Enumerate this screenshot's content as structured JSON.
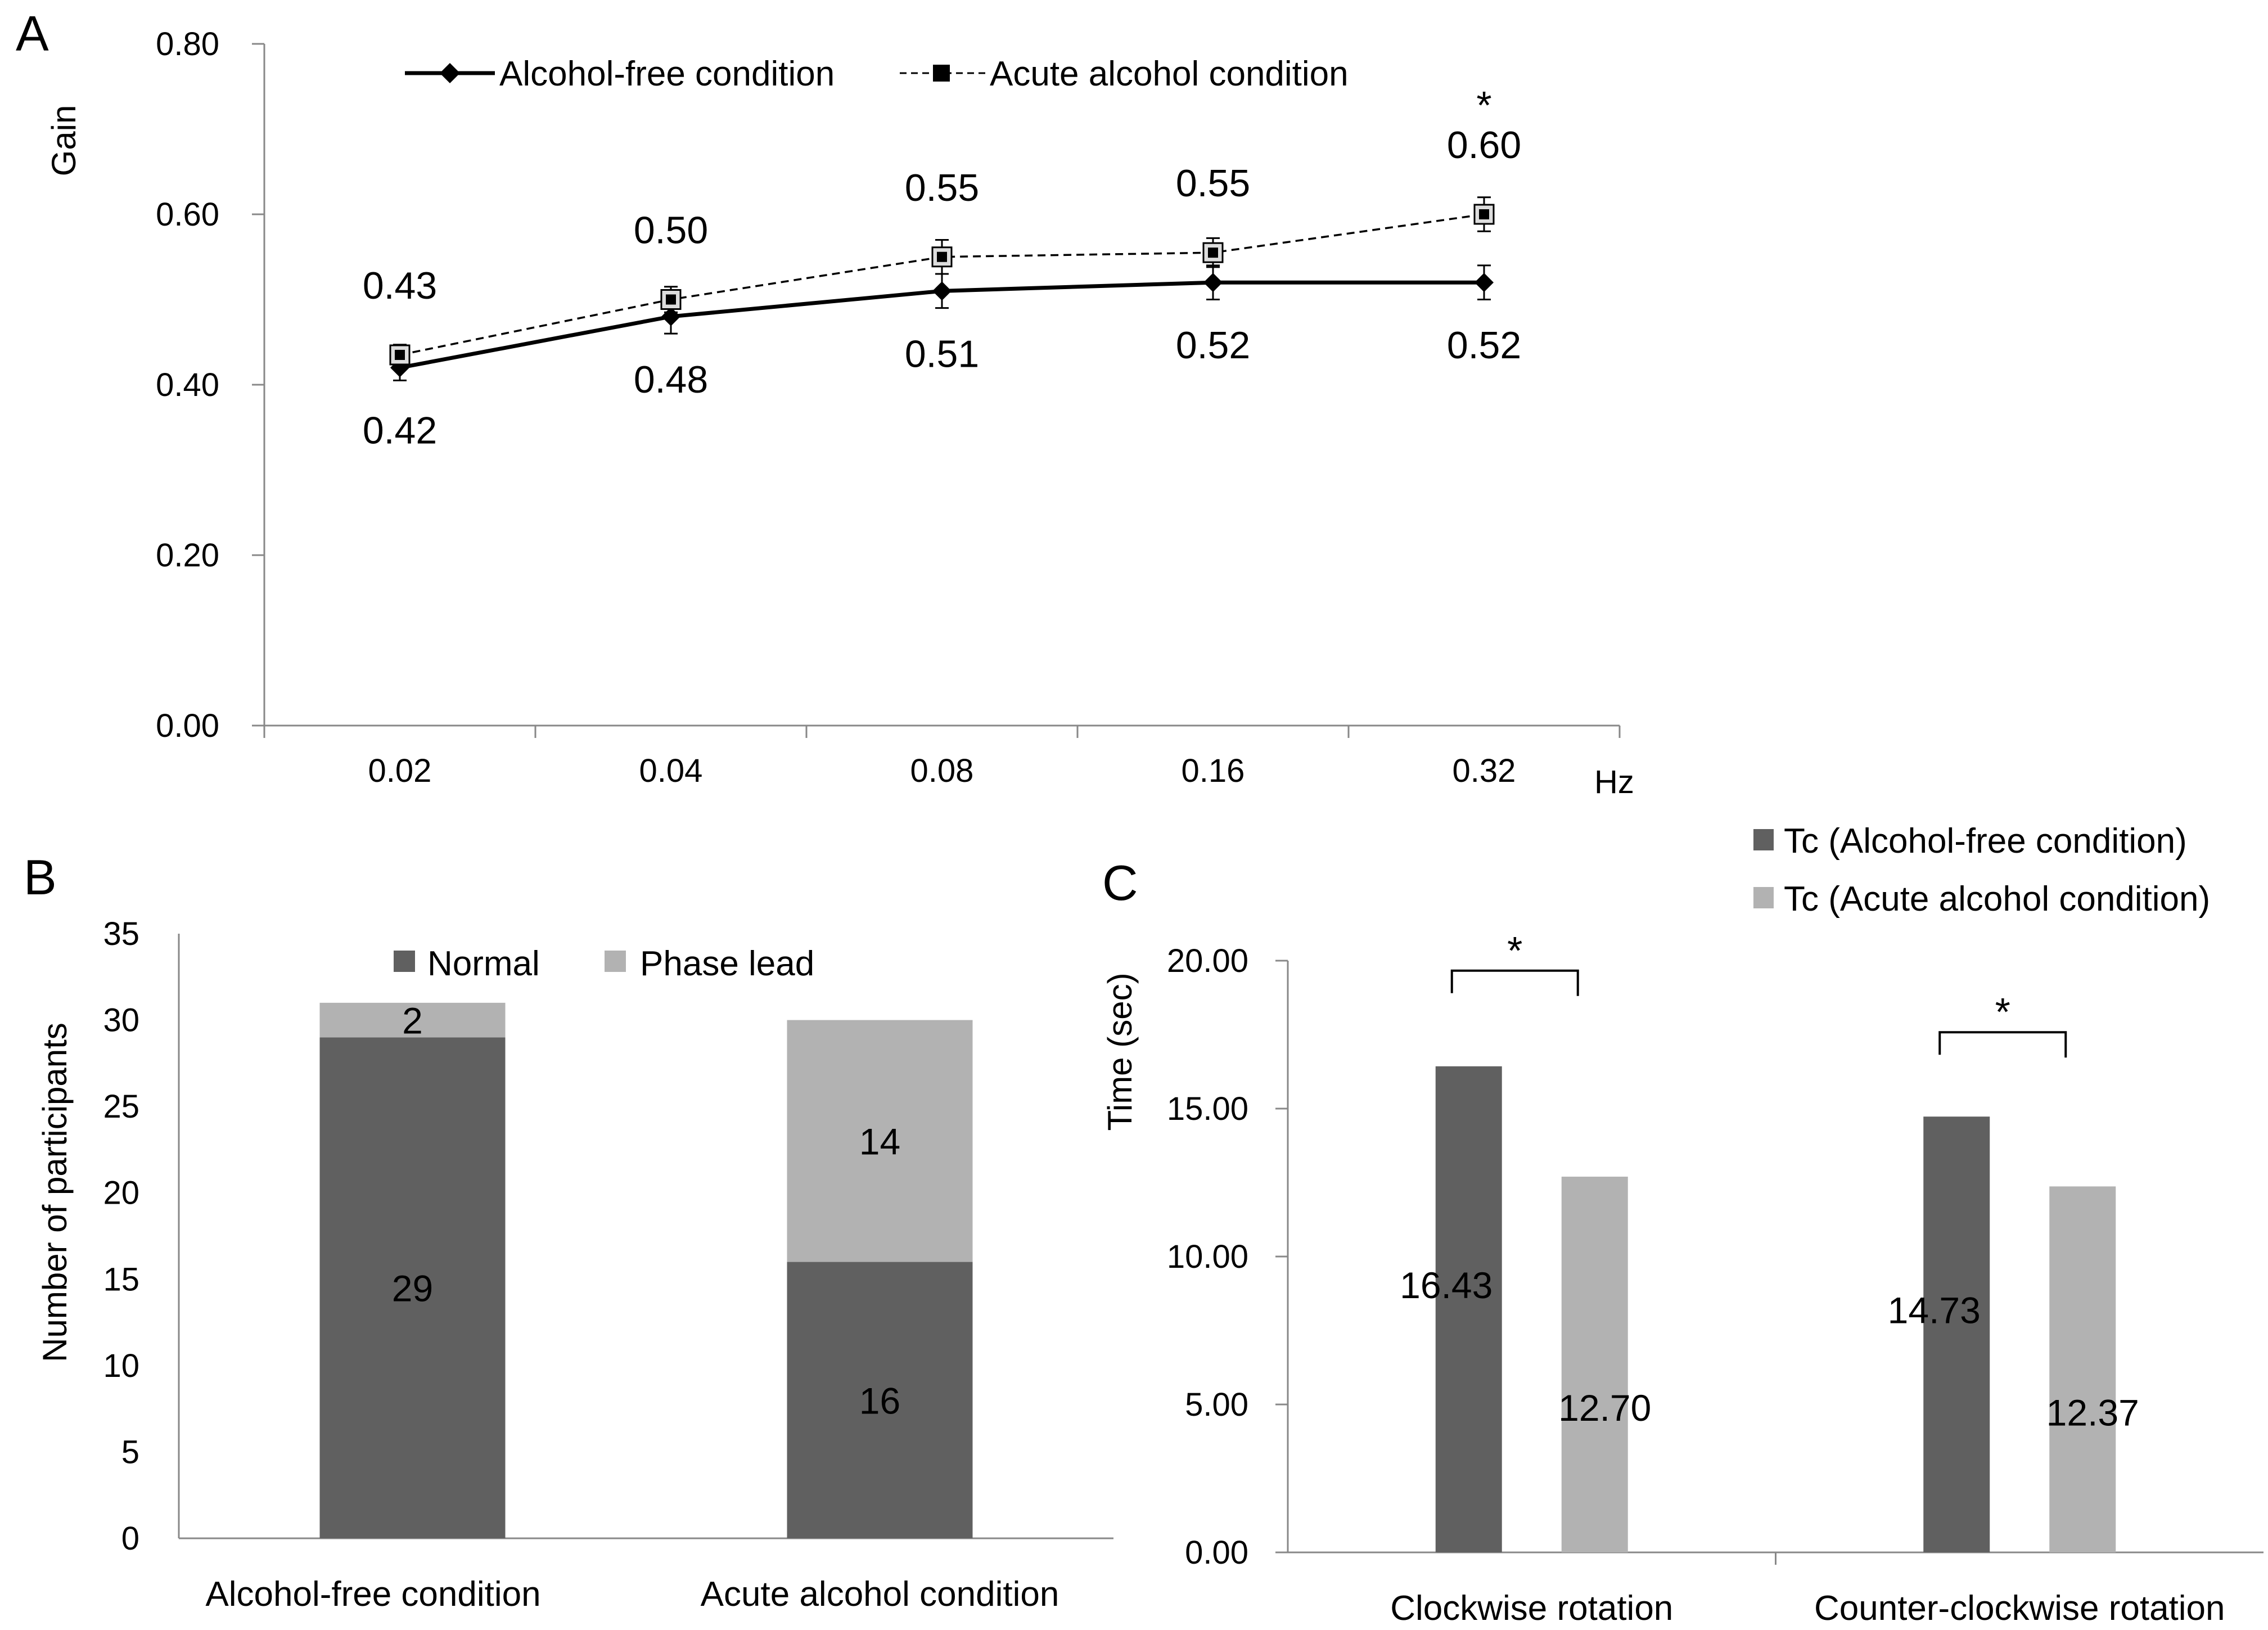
{
  "colors": {
    "dark": "#606060",
    "light": "#b2b2b2",
    "axis": "#888888",
    "line": "#000000"
  },
  "chart_data": [
    {
      "panel": "A",
      "type": "line",
      "ylabel": "Gain",
      "xunit": "Hz",
      "categories": [
        "0.02",
        "0.04",
        "0.08",
        "0.16",
        "0.32"
      ],
      "ylim": [
        0,
        0.8
      ],
      "yticks": [
        "0.00",
        "0.20",
        "0.40",
        "0.60",
        "0.80"
      ],
      "grid": false,
      "legend_position": "top",
      "series": [
        {
          "name": "Alcohol-free condition",
          "style": "solid-diamond",
          "values": [
            0.42,
            0.48,
            0.51,
            0.52,
            0.52
          ],
          "errors": [
            0.015,
            0.02,
            0.02,
            0.02,
            0.02
          ],
          "labels": [
            "0.42",
            "0.48",
            "0.51",
            "0.52",
            "0.52"
          ]
        },
        {
          "name": "Acute alcohol condition",
          "style": "dashed-square",
          "values": [
            0.435,
            0.5,
            0.55,
            0.555,
            0.6
          ],
          "errors": [
            0.012,
            0.015,
            0.02,
            0.017,
            0.02
          ],
          "labels": [
            "0.43",
            "0.50",
            "0.55",
            "0.55",
            "0.60"
          ]
        }
      ],
      "annotations": [
        {
          "category": "0.32",
          "text": "*"
        }
      ]
    },
    {
      "panel": "B",
      "type": "bar",
      "stacked": true,
      "ylabel": "Number of participants",
      "categories": [
        "Alcohol-free condition",
        "Acute alcohol condition"
      ],
      "ylim": [
        0,
        35
      ],
      "yticks": [
        "0",
        "5",
        "10",
        "15",
        "20",
        "25",
        "30",
        "35"
      ],
      "legend_position": "top",
      "series": [
        {
          "name": "Normal",
          "values": [
            29,
            16
          ],
          "labels": [
            "29",
            "16"
          ]
        },
        {
          "name": "Phase lead",
          "values": [
            2,
            14
          ],
          "labels": [
            "2",
            "14"
          ]
        }
      ]
    },
    {
      "panel": "C",
      "type": "bar",
      "stacked": false,
      "ylabel": "Time (sec)",
      "categories": [
        "Clockwise rotation",
        "Counter-clockwise rotation"
      ],
      "ylim": [
        0,
        20
      ],
      "yticks": [
        "0.00",
        "5.00",
        "10.00",
        "15.00",
        "20.00"
      ],
      "legend_position": "top-right",
      "series": [
        {
          "name": "Tc (Alcohol-free condition)",
          "values": [
            16.43,
            14.73
          ],
          "labels": [
            "16.43",
            "14.73"
          ]
        },
        {
          "name": "Tc (Acute alcohol condition)",
          "values": [
            12.7,
            12.37
          ],
          "labels": [
            "12.70",
            "12.37"
          ]
        }
      ],
      "annotations": [
        {
          "category": "Clockwise rotation",
          "text": "*"
        },
        {
          "category": "Counter-clockwise rotation",
          "text": "*"
        }
      ]
    }
  ]
}
